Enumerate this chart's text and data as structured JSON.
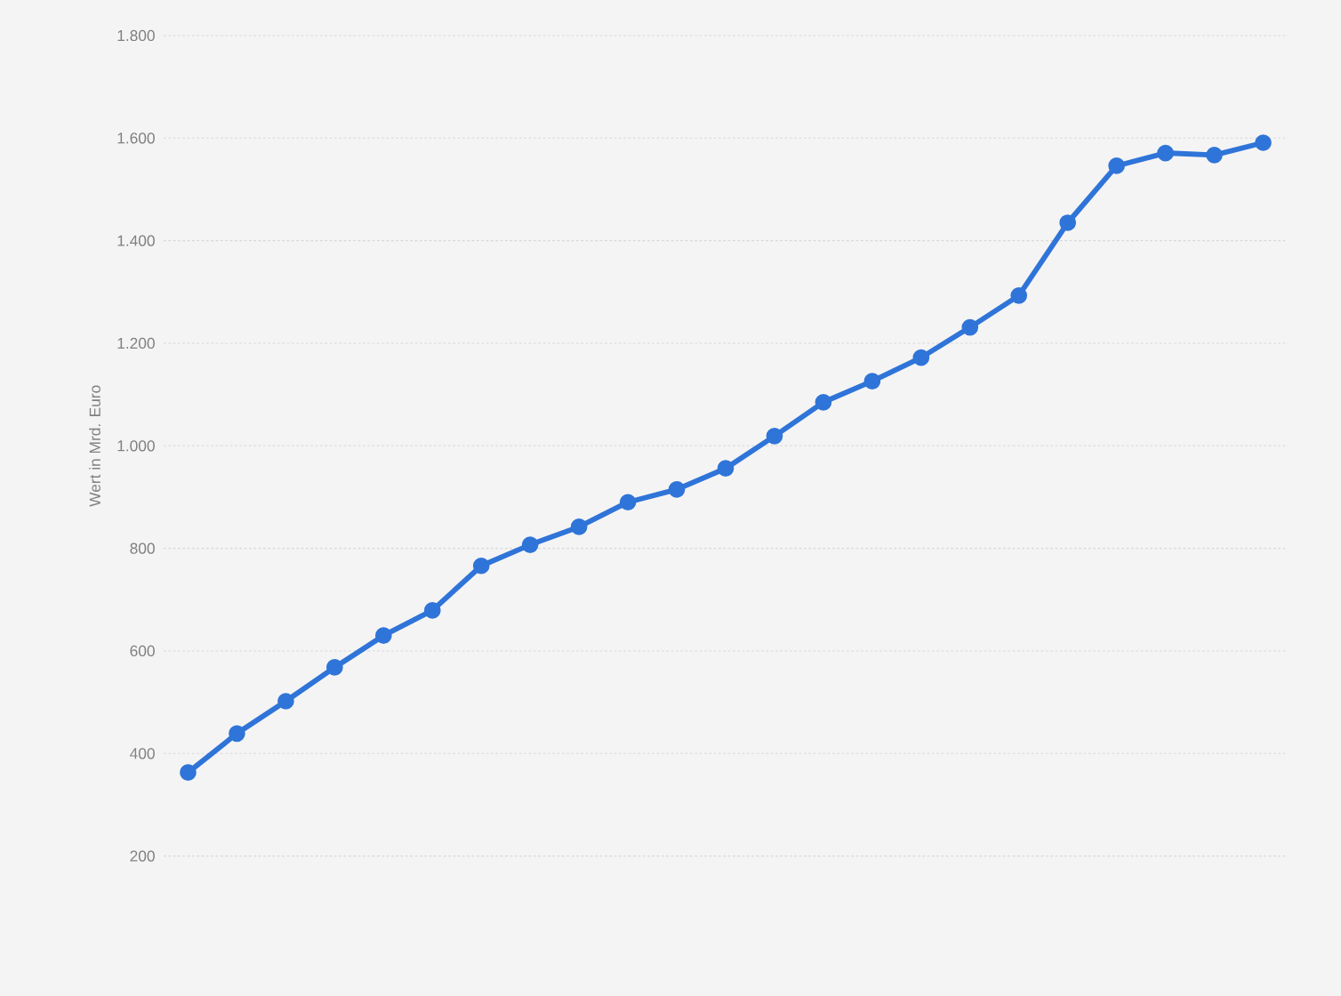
{
  "chart_data": {
    "type": "line",
    "ylabel": "Wert in Mrd. Euro",
    "categories": [
      null,
      null,
      null,
      null,
      null,
      null,
      null,
      null,
      null,
      null,
      null,
      null,
      null,
      null,
      null,
      null,
      null,
      null,
      null,
      null,
      null,
      null,
      null
    ],
    "values": [
      363,
      439,
      502,
      568,
      630,
      679,
      766,
      807,
      842,
      890,
      915,
      956,
      1019,
      1085,
      1126,
      1172,
      1231,
      1293,
      1435,
      1546,
      1571,
      1567,
      1591
    ],
    "color": "#2f74d8",
    "ylim": [
      200,
      1800
    ],
    "yticks": [
      {
        "value": 200,
        "label": "200"
      },
      {
        "value": 400,
        "label": "400"
      },
      {
        "value": 600,
        "label": "600"
      },
      {
        "value": 800,
        "label": "800"
      },
      {
        "value": 1000,
        "label": "1.000"
      },
      {
        "value": 1200,
        "label": "1.200"
      },
      {
        "value": 1400,
        "label": "1.400"
      },
      {
        "value": 1600,
        "label": "1.600"
      },
      {
        "value": 1800,
        "label": "1.800"
      }
    ],
    "grid": "y",
    "marker": "circle",
    "line_style": "solid"
  }
}
